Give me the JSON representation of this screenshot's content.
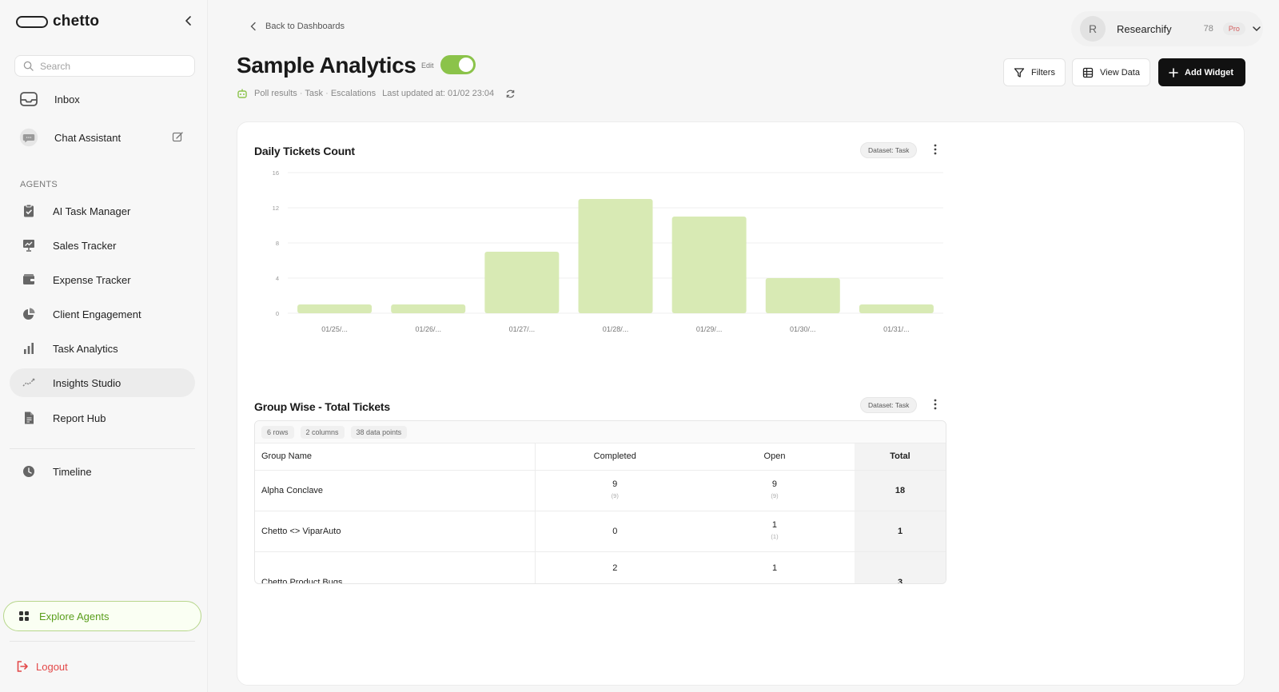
{
  "app": {
    "brand": "chetto",
    "colors": {
      "accent": "#8bc34a",
      "bar": "#d8eab4",
      "danger": "#e34848",
      "dark": "#111111"
    }
  },
  "sidebar": {
    "search_placeholder": "Search",
    "top_items": [
      {
        "label": "Inbox",
        "icon": "inbox-icon"
      },
      {
        "label": "Chat Assistant",
        "icon": "chat-bubble-icon"
      }
    ],
    "agents_label": "AGENTS",
    "agents": [
      {
        "label": "AI Task Manager",
        "icon": "clipboard-check-icon"
      },
      {
        "label": "Sales Tracker",
        "icon": "presentation-chart-icon"
      },
      {
        "label": "Expense Tracker",
        "icon": "wallet-icon"
      },
      {
        "label": "Client Engagement",
        "icon": "pie-chart-icon"
      },
      {
        "label": "Task Analytics",
        "icon": "bar-chart-icon"
      },
      {
        "label": "Insights Studio",
        "icon": "trend-line-icon",
        "active": true
      },
      {
        "label": "Report Hub",
        "icon": "document-icon"
      }
    ],
    "timeline": {
      "label": "Timeline",
      "icon": "clock-icon"
    },
    "explore_label": "Explore Agents",
    "logout_label": "Logout"
  },
  "header": {
    "back_label": "Back to Dashboards",
    "title": "Sample Analytics",
    "edit_label": "Edit",
    "edit_enabled": true,
    "subtitle": {
      "path": [
        "Poll results",
        "Task",
        "Escalations"
      ],
      "separator": "·",
      "last_updated": "Last updated at: 01/02 23:04"
    },
    "account": {
      "initial": "R",
      "name": "Researchify",
      "count": "78",
      "plan": "Pro"
    },
    "buttons": {
      "filters": "Filters",
      "view_data": "View Data",
      "add_widget": "Add Widget"
    }
  },
  "widgets": {
    "daily": {
      "title": "Daily Tickets Count",
      "dataset": "Dataset: Task"
    },
    "group": {
      "title": "Group Wise - Total Tickets",
      "dataset": "Dataset: Task",
      "stats": [
        "6 rows",
        "2 columns",
        "38 data points"
      ],
      "columns": [
        "Group Name",
        "Completed",
        "Open",
        "Total"
      ],
      "rows": [
        {
          "name": "Alpha Conclave",
          "completed": "9",
          "completed_sub": "(9)",
          "open": "9",
          "open_sub": "(9)",
          "total": "18"
        },
        {
          "name": "Chetto <> ViparAuto",
          "completed": "0",
          "completed_sub": "",
          "open": "1",
          "open_sub": "(1)",
          "total": "1"
        },
        {
          "name": "Chetto Product Bugs",
          "completed": "2",
          "completed_sub": "",
          "open": "1",
          "open_sub": "",
          "total": "3"
        }
      ]
    }
  },
  "chart_data": {
    "type": "bar",
    "title": "Daily Tickets Count",
    "categories": [
      "01/25/...",
      "01/26/...",
      "01/27/...",
      "01/28/...",
      "01/29/...",
      "01/30/...",
      "01/31/..."
    ],
    "values": [
      1,
      1,
      7,
      13,
      11,
      4,
      1
    ],
    "yticks": [
      0,
      4,
      8,
      12,
      16
    ],
    "ylim": [
      0,
      16
    ],
    "grid": true,
    "legend": "none"
  }
}
